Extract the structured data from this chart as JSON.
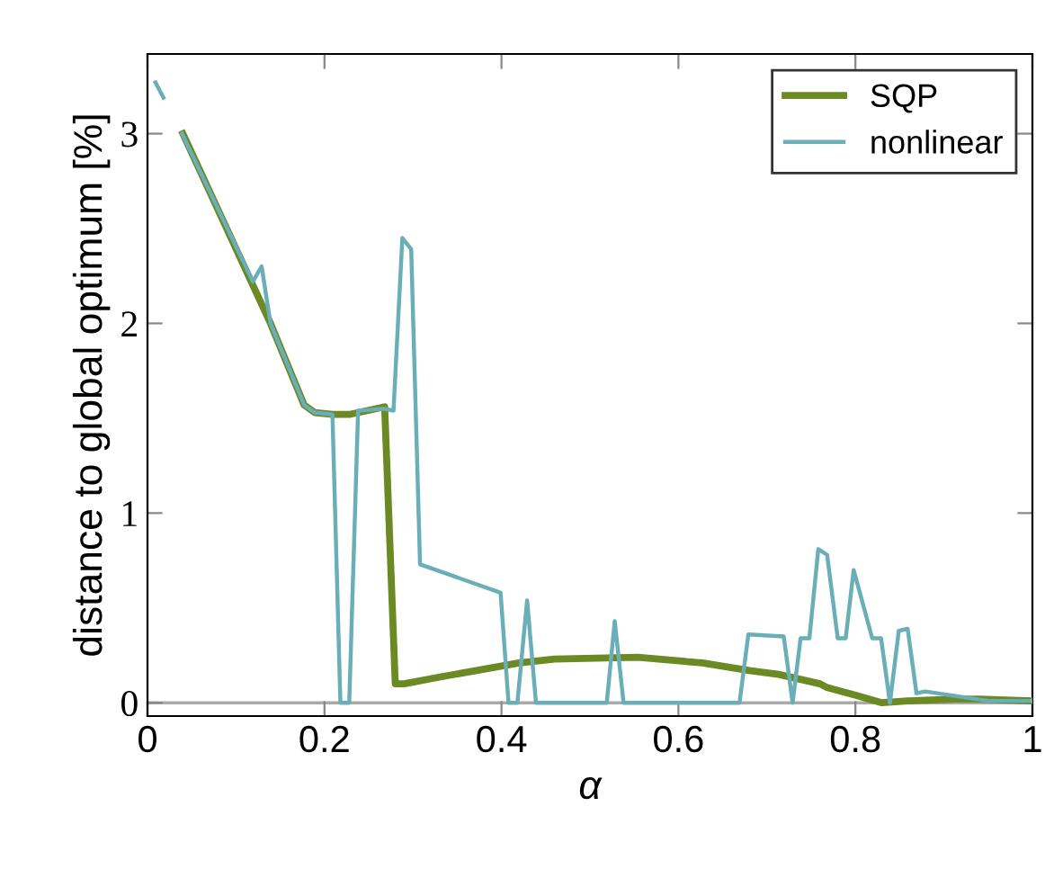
{
  "chart_data": {
    "type": "line",
    "xlabel": "α",
    "ylabel": "distance to global optimum [%]",
    "xlim": [
      0,
      1
    ],
    "ylim": [
      -0.07,
      3.42
    ],
    "xticks": [
      0,
      0.2,
      0.4,
      0.6,
      0.8,
      1
    ],
    "yticks": [
      0,
      1,
      2,
      3
    ],
    "grid": false,
    "legend": "top right",
    "marker": "none",
    "line_style": "solid",
    "ref_lines": [
      {
        "axis": "y",
        "value": 0,
        "color": "#aaaaaa"
      }
    ],
    "series": [
      {
        "name": "SQP",
        "color": "#6b8a23",
        "x": [
          0.04,
          0.139,
          0.177,
          0.189,
          0.209,
          0.228,
          0.268,
          0.28,
          0.29,
          0.335,
          0.42,
          0.46,
          0.554,
          0.627,
          0.68,
          0.713,
          0.76,
          0.768,
          0.8,
          0.83,
          0.859,
          0.912,
          0.94,
          1.0
        ],
        "values": [
          3.0,
          2.0,
          1.57,
          1.53,
          1.52,
          1.52,
          1.56,
          0.1,
          0.1,
          0.14,
          0.21,
          0.23,
          0.24,
          0.21,
          0.17,
          0.15,
          0.1,
          0.08,
          0.04,
          0.0,
          0.01,
          0.02,
          0.02,
          0.01
        ]
      },
      {
        "name": "nonlinear",
        "color": "#6aaeb8",
        "x": [
          0.009,
          0.018,
          0.029,
          0.039,
          0.119,
          0.129,
          0.139,
          0.177,
          0.189,
          0.209,
          0.218,
          0.228,
          0.238,
          0.268,
          0.278,
          0.288,
          0.298,
          0.308,
          0.399,
          0.408,
          0.418,
          0.429,
          0.439,
          0.519,
          0.528,
          0.538,
          0.669,
          0.679,
          0.719,
          0.729,
          0.738,
          0.748,
          0.758,
          0.768,
          0.78,
          0.789,
          0.798,
          0.819,
          0.829,
          0.839,
          0.849,
          0.859,
          0.869,
          0.879,
          0.95,
          1.0
        ],
        "values": [
          3.27,
          3.19,
          null,
          3.0,
          2.22,
          2.3,
          2.0,
          1.57,
          1.53,
          1.52,
          0,
          0,
          1.54,
          1.55,
          1.54,
          2.45,
          2.39,
          0.73,
          0.58,
          0,
          0,
          0.54,
          0,
          0,
          0.43,
          0,
          0,
          0.36,
          0.35,
          0,
          0.34,
          0.34,
          0.81,
          0.78,
          0.34,
          0.34,
          0.7,
          0.34,
          0.34,
          0,
          0.38,
          0.39,
          0.05,
          0.06,
          0.01,
          0.01
        ]
      }
    ]
  }
}
